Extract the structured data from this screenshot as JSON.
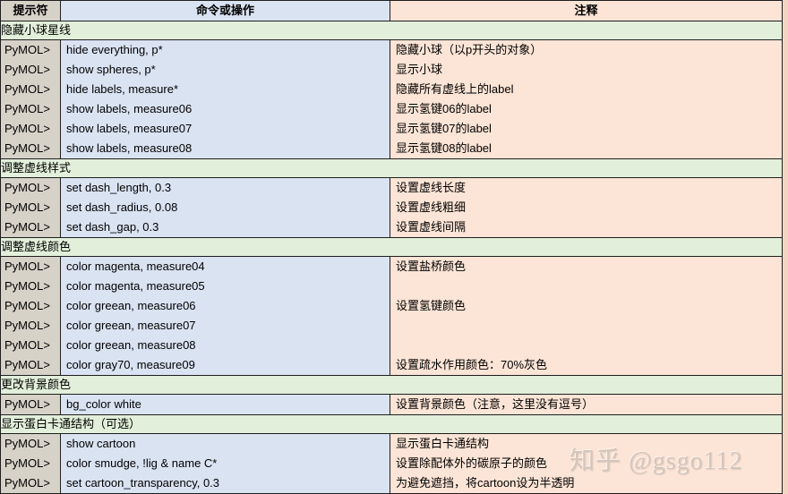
{
  "colors": {
    "prompt_col_bg": "#d7d2c8",
    "command_col_bg": "#dae3f2",
    "comment_col_bg": "#fce4d6",
    "section_bg": "#e2efda",
    "border": "#1f1f1f",
    "outside_strip_bg": "#f2d5c2",
    "text": "#000000",
    "watermark": "#c9bcb4"
  },
  "header": {
    "columns": [
      "提示符",
      "命令或操作",
      "注释"
    ]
  },
  "rows": [
    {
      "type": "section",
      "label": "隐藏小球星线"
    },
    {
      "type": "data",
      "prompt": "PyMOL>",
      "command": "hide everything, p*",
      "comment": "隐藏小球（以p开头的对象）"
    },
    {
      "type": "data",
      "prompt": "PyMOL>",
      "command": "show spheres, p*",
      "comment": "显示小球"
    },
    {
      "type": "data",
      "prompt": "PyMOL>",
      "command": "hide labels, measure*",
      "comment": "隐藏所有虚线上的label"
    },
    {
      "type": "data",
      "prompt": "PyMOL>",
      "command": "show labels, measure06",
      "comment": "显示氢键06的label"
    },
    {
      "type": "data",
      "prompt": "PyMOL>",
      "command": "show labels, measure07",
      "comment": "显示氢键07的label"
    },
    {
      "type": "data",
      "prompt": "PyMOL>",
      "command": "show labels, measure08",
      "comment": "显示氢键08的label"
    },
    {
      "type": "section",
      "label": "调整虚线样式"
    },
    {
      "type": "data",
      "prompt": "PyMOL>",
      "command": "set dash_length, 0.3",
      "comment": "设置虚线长度"
    },
    {
      "type": "data",
      "prompt": "PyMOL>",
      "command": "set dash_radius, 0.08",
      "comment": "设置虚线粗细"
    },
    {
      "type": "data",
      "prompt": "PyMOL>",
      "command": "set dash_gap, 0.3",
      "comment": "设置虚线间隔"
    },
    {
      "type": "section",
      "label": "调整虚线颜色"
    },
    {
      "type": "data",
      "prompt": "PyMOL>",
      "command": "color magenta, measure04",
      "comment": "设置盐桥颜色"
    },
    {
      "type": "data",
      "prompt": "PyMOL>",
      "command": "color magenta, measure05",
      "comment": ""
    },
    {
      "type": "data",
      "prompt": "PyMOL>",
      "command": "color greean, measure06",
      "comment": "设置氢键颜色"
    },
    {
      "type": "data",
      "prompt": "PyMOL>",
      "command": "color greean, measure07",
      "comment": ""
    },
    {
      "type": "data",
      "prompt": "PyMOL>",
      "command": "color greean, measure08",
      "comment": ""
    },
    {
      "type": "data",
      "prompt": "PyMOL>",
      "command": "color gray70, measure09",
      "comment": "设置疏水作用颜色：70%灰色"
    },
    {
      "type": "section",
      "label": "更改背景颜色"
    },
    {
      "type": "data",
      "prompt": "PyMOL>",
      "command": "bg_color white",
      "comment": "设置背景颜色（注意，这里没有逗号）"
    },
    {
      "type": "section",
      "label": "显示蛋白卡通结构（可选）"
    },
    {
      "type": "data",
      "prompt": "PyMOL>",
      "command": "show cartoon",
      "comment": "显示蛋白卡通结构"
    },
    {
      "type": "data",
      "prompt": "PyMOL>",
      "command": "color smudge, !lig & name C*",
      "comment": "设置除配体外的碳原子的颜色"
    },
    {
      "type": "data",
      "prompt": "PyMOL>",
      "command": "set cartoon_transparency, 0.3",
      "comment": "为避免遮挡，将cartoon设为半透明"
    }
  ],
  "watermark": {
    "text": "知乎 @gsgo112"
  }
}
